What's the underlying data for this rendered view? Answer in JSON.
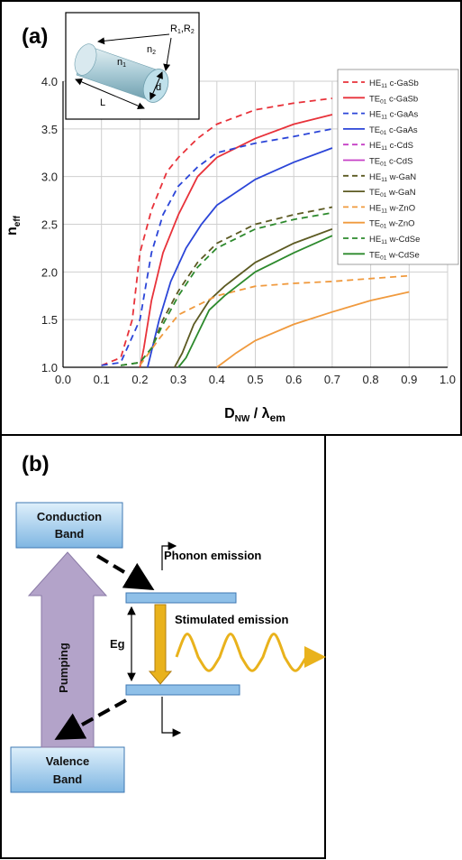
{
  "panel_a": {
    "label": "(a)",
    "inset": {
      "r_label": "R1,R2",
      "n1": "n1",
      "n2": "n2",
      "d": "d",
      "L": "L"
    }
  },
  "panel_b": {
    "label": "(b)",
    "conduction_band": [
      "Conduction",
      "Band"
    ],
    "valence_band": [
      "Valence",
      "Band"
    ],
    "pumping": "Pumping",
    "eg": "Eg",
    "phonon_emission": "Phonon emission",
    "stimulated_emission": "Stimulated emission"
  },
  "colors": {
    "GaSb": "#e8323a",
    "GaAs": "#2b45d8",
    "CdS": "#c640c6",
    "GaN": "#5c5a22",
    "ZnO": "#f09a3e",
    "CdSe": "#2d8a2d",
    "band_fill": "#9cc8ec",
    "pump": "#b3a3c9",
    "arrow_gold": "#e9b21c"
  },
  "chart_data": {
    "type": "line",
    "xlabel": "D_NW / λ_em",
    "ylabel": "n_eff",
    "xlim": [
      0.0,
      1.0
    ],
    "ylim": [
      1.0,
      4.0
    ],
    "xticks": [
      "0.0",
      "0.1",
      "0.2",
      "0.3",
      "0.4",
      "0.5",
      "0.6",
      "0.7",
      "0.8",
      "0.9",
      "1.0"
    ],
    "yticks": [
      "1.0",
      "1.5",
      "2.0",
      "2.5",
      "3.0",
      "3.5",
      "4.0"
    ],
    "grid": true,
    "legend_position": "top-right",
    "series": [
      {
        "name": "HE11 c-GaSb",
        "mode": "HE",
        "sub": "11",
        "mat": "c-GaSb",
        "color": "#e8323a",
        "dash": true,
        "x": [
          0.1,
          0.15,
          0.18,
          0.2,
          0.23,
          0.27,
          0.3,
          0.35,
          0.4,
          0.5,
          0.6,
          0.7
        ],
        "y": [
          1.02,
          1.1,
          1.5,
          2.2,
          2.65,
          3.05,
          3.2,
          3.4,
          3.55,
          3.7,
          3.77,
          3.82
        ]
      },
      {
        "name": "TE01 c-GaSb",
        "mode": "TE",
        "sub": "01",
        "mat": "c-GaSb",
        "color": "#e8323a",
        "dash": false,
        "x": [
          0.2,
          0.21,
          0.23,
          0.26,
          0.3,
          0.35,
          0.4,
          0.5,
          0.6,
          0.7
        ],
        "y": [
          1.0,
          1.2,
          1.7,
          2.2,
          2.6,
          3.0,
          3.2,
          3.4,
          3.55,
          3.65
        ]
      },
      {
        "name": "HE11 c-GaAs",
        "mode": "HE",
        "sub": "11",
        "mat": "c-GaAs",
        "color": "#2b45d8",
        "dash": true,
        "x": [
          0.1,
          0.15,
          0.2,
          0.23,
          0.26,
          0.3,
          0.35,
          0.4,
          0.5,
          0.6,
          0.7
        ],
        "y": [
          1.02,
          1.05,
          1.5,
          2.2,
          2.6,
          2.9,
          3.1,
          3.25,
          3.35,
          3.42,
          3.5
        ]
      },
      {
        "name": "TE01 c-GaAs",
        "mode": "TE",
        "sub": "01",
        "mat": "c-GaAs",
        "color": "#2b45d8",
        "dash": false,
        "x": [
          0.22,
          0.25,
          0.28,
          0.32,
          0.36,
          0.4,
          0.5,
          0.6,
          0.7
        ],
        "y": [
          1.0,
          1.5,
          1.9,
          2.25,
          2.5,
          2.7,
          2.97,
          3.15,
          3.3
        ]
      },
      {
        "name": "HE11 c-CdS",
        "mode": "HE",
        "sub": "11",
        "mat": "c-CdS",
        "color": "#c640c6",
        "dash": true,
        "x": [],
        "y": []
      },
      {
        "name": "TE01 c-CdS",
        "mode": "TE",
        "sub": "01",
        "mat": "c-CdS",
        "color": "#c640c6",
        "dash": false,
        "x": [],
        "y": []
      },
      {
        "name": "HE11 w-GaN",
        "mode": "HE",
        "sub": "11",
        "mat": "w-GaN",
        "color": "#5c5a22",
        "dash": true,
        "x": [
          0.15,
          0.2,
          0.23,
          0.26,
          0.3,
          0.35,
          0.4,
          0.5,
          0.6,
          0.7
        ],
        "y": [
          1.02,
          1.05,
          1.2,
          1.5,
          1.8,
          2.1,
          2.3,
          2.5,
          2.6,
          2.68
        ]
      },
      {
        "name": "TE01 w-GaN",
        "mode": "TE",
        "sub": "01",
        "mat": "w-GaN",
        "color": "#5c5a22",
        "dash": false,
        "x": [
          0.29,
          0.31,
          0.34,
          0.38,
          0.42,
          0.5,
          0.6,
          0.7
        ],
        "y": [
          1.0,
          1.15,
          1.45,
          1.7,
          1.85,
          2.1,
          2.3,
          2.45
        ]
      },
      {
        "name": "HE11 w-ZnO",
        "mode": "HE",
        "sub": "11",
        "mat": "w-ZnO",
        "color": "#f09a3e",
        "dash": true,
        "x": [
          0.2,
          0.25,
          0.3,
          0.35,
          0.4,
          0.5,
          0.6,
          0.7,
          0.8,
          0.9
        ],
        "y": [
          1.02,
          1.3,
          1.55,
          1.65,
          1.75,
          1.85,
          1.88,
          1.9,
          1.93,
          1.96
        ]
      },
      {
        "name": "TE01 w-ZnO",
        "mode": "TE",
        "sub": "01",
        "mat": "w-ZnO",
        "color": "#f09a3e",
        "dash": false,
        "x": [
          0.4,
          0.45,
          0.5,
          0.6,
          0.7,
          0.8,
          0.9
        ],
        "y": [
          1.0,
          1.15,
          1.28,
          1.45,
          1.58,
          1.7,
          1.79
        ]
      },
      {
        "name": "HE11 w-CdSe",
        "mode": "HE",
        "sub": "11",
        "mat": "w-CdSe",
        "color": "#2d8a2d",
        "dash": true,
        "x": [
          0.15,
          0.2,
          0.23,
          0.26,
          0.3,
          0.35,
          0.4,
          0.5,
          0.6,
          0.7
        ],
        "y": [
          1.02,
          1.05,
          1.2,
          1.45,
          1.75,
          2.05,
          2.25,
          2.45,
          2.55,
          2.62
        ]
      },
      {
        "name": "TE01 w-CdSe",
        "mode": "TE",
        "sub": "01",
        "mat": "w-CdSe",
        "color": "#2d8a2d",
        "dash": false,
        "x": [
          0.3,
          0.32,
          0.35,
          0.38,
          0.42,
          0.5,
          0.6,
          0.7
        ],
        "y": [
          1.0,
          1.1,
          1.35,
          1.6,
          1.75,
          2.0,
          2.2,
          2.38
        ]
      }
    ]
  }
}
